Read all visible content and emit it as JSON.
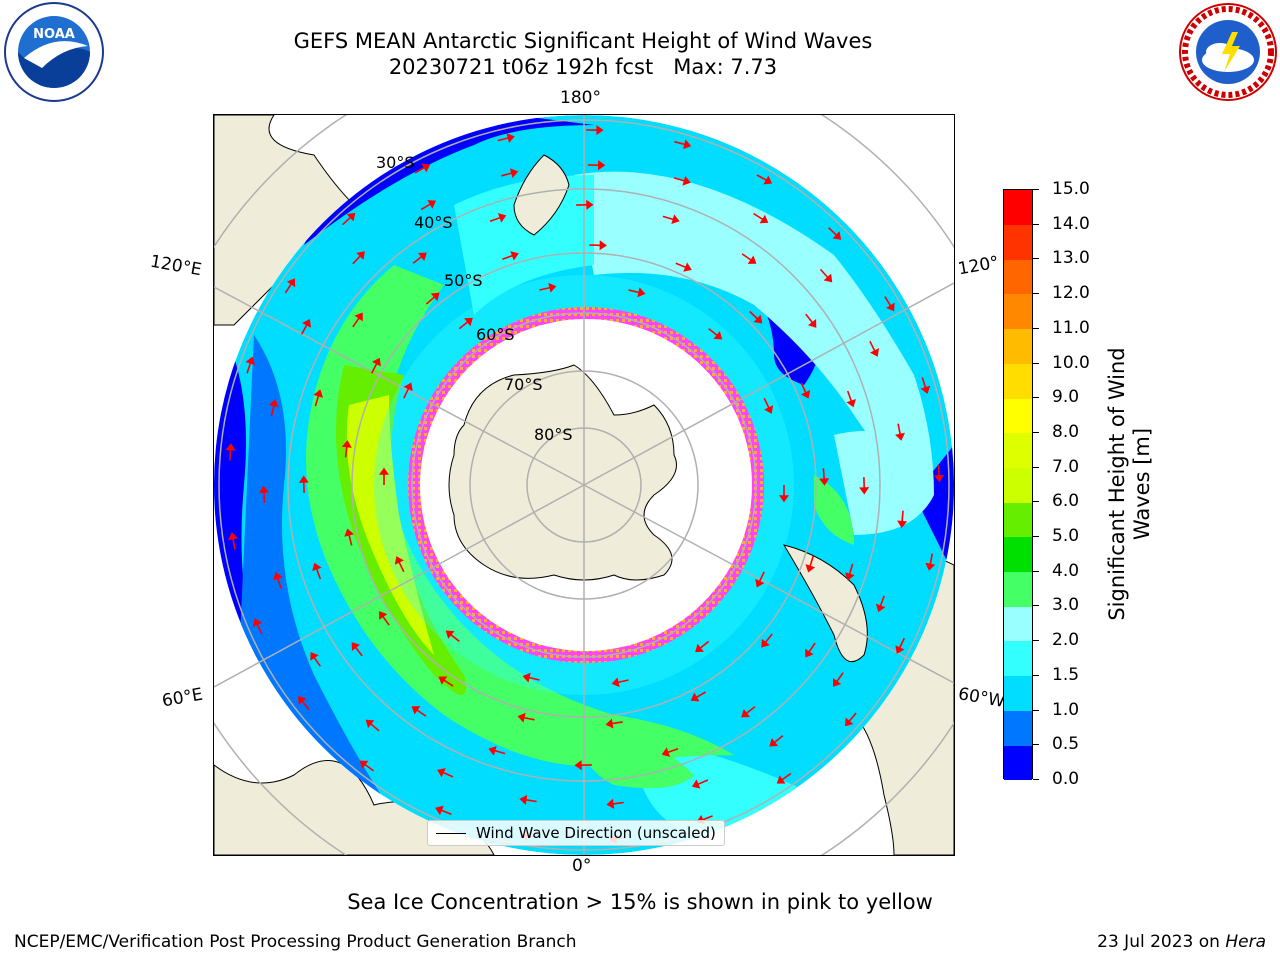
{
  "header": {
    "title_line1": "GEFS MEAN Antarctic Significant Height of Wind Waves",
    "title_line2": "20230721 t06z 192h fcst   Max: 7.73"
  },
  "logos": {
    "left": {
      "icon": "noaa-logo-icon",
      "text": "NOAA"
    },
    "right": {
      "icon": "nws-logo-icon",
      "text": "NATIONAL WEATHER SERVICE"
    }
  },
  "map": {
    "projection": "south-polar-stereographic",
    "longitude_labels": {
      "top": "180°",
      "bottom": "0°",
      "upper_left": "120°E",
      "lower_left": "60°E",
      "upper_right": "120°",
      "lower_right": "60°W"
    },
    "latitude_labels": [
      "30°S",
      "40°S",
      "50°S",
      "60°S",
      "70°S",
      "80°S"
    ],
    "legend": "Wind Wave Direction (unscaled)",
    "arrow_color": "#ff0000",
    "land_color": "#efedd9",
    "sea_ice_colors": [
      "#ff33ff",
      "#ffaa33",
      "#ffee33"
    ]
  },
  "colorbar": {
    "label": "Significant Height of Wind Waves [m]",
    "ticks": [
      "0.0",
      "0.5",
      "1.0",
      "1.5",
      "2.0",
      "3.0",
      "4.0",
      "5.0",
      "6.0",
      "7.0",
      "8.0",
      "9.0",
      "10.0",
      "11.0",
      "12.0",
      "13.0",
      "14.0",
      "15.0"
    ],
    "colors": [
      "#0000ff",
      "#0077ff",
      "#00ddff",
      "#33ffff",
      "#99ffff",
      "#44ff66",
      "#00e000",
      "#66ee00",
      "#ccff00",
      "#ddff00",
      "#ffff00",
      "#ffdd00",
      "#ffbb00",
      "#ff8800",
      "#ff6600",
      "#ff3300",
      "#ff0000"
    ]
  },
  "note": "Sea Ice Concentration > 15% is shown in pink to yellow",
  "footer": {
    "left": "NCEP/EMC/Verification Post Processing Product Generation Branch",
    "date": "23 Jul 2023 on ",
    "host": "Hera"
  }
}
